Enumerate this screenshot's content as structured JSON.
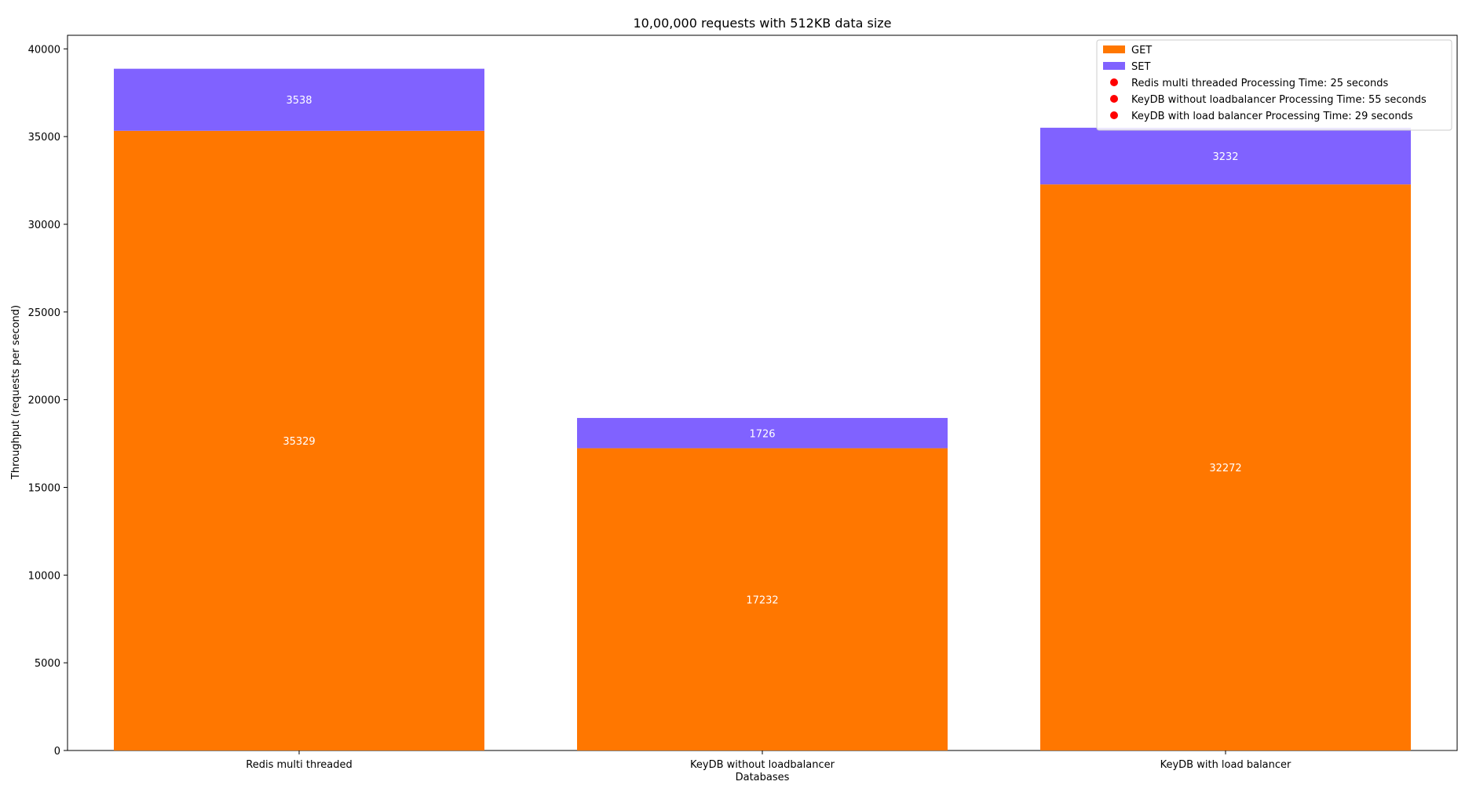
{
  "chart_data": {
    "type": "bar",
    "stacked": true,
    "title": "10,00,000 requests with 512KB data size",
    "xlabel": "Databases",
    "ylabel": "Throughput (requests per second)",
    "ylim": [
      0,
      40774
    ],
    "yticks": [
      0,
      5000,
      10000,
      15000,
      20000,
      25000,
      30000,
      35000,
      40000
    ],
    "grid": false,
    "legend_position": "top-right",
    "categories": [
      "Redis multi threaded",
      "KeyDB without loadbalancer",
      "KeyDB with load balancer"
    ],
    "series": [
      {
        "name": "GET",
        "values": [
          35329,
          17232,
          32272
        ],
        "color": "#ff7700"
      },
      {
        "name": "SET",
        "values": [
          3538,
          1726,
          3232
        ],
        "color": "#8062ff"
      }
    ],
    "legend_extra": [
      {
        "label": "Redis multi threaded Processing Time: 25 seconds",
        "marker": "dot",
        "color": "#ff0000"
      },
      {
        "label": "KeyDB without loadbalancer Processing Time: 55 seconds",
        "marker": "dot",
        "color": "#ff0000"
      },
      {
        "label": "KeyDB with load balancer Processing Time: 29 seconds",
        "marker": "dot",
        "color": "#ff0000"
      }
    ]
  }
}
